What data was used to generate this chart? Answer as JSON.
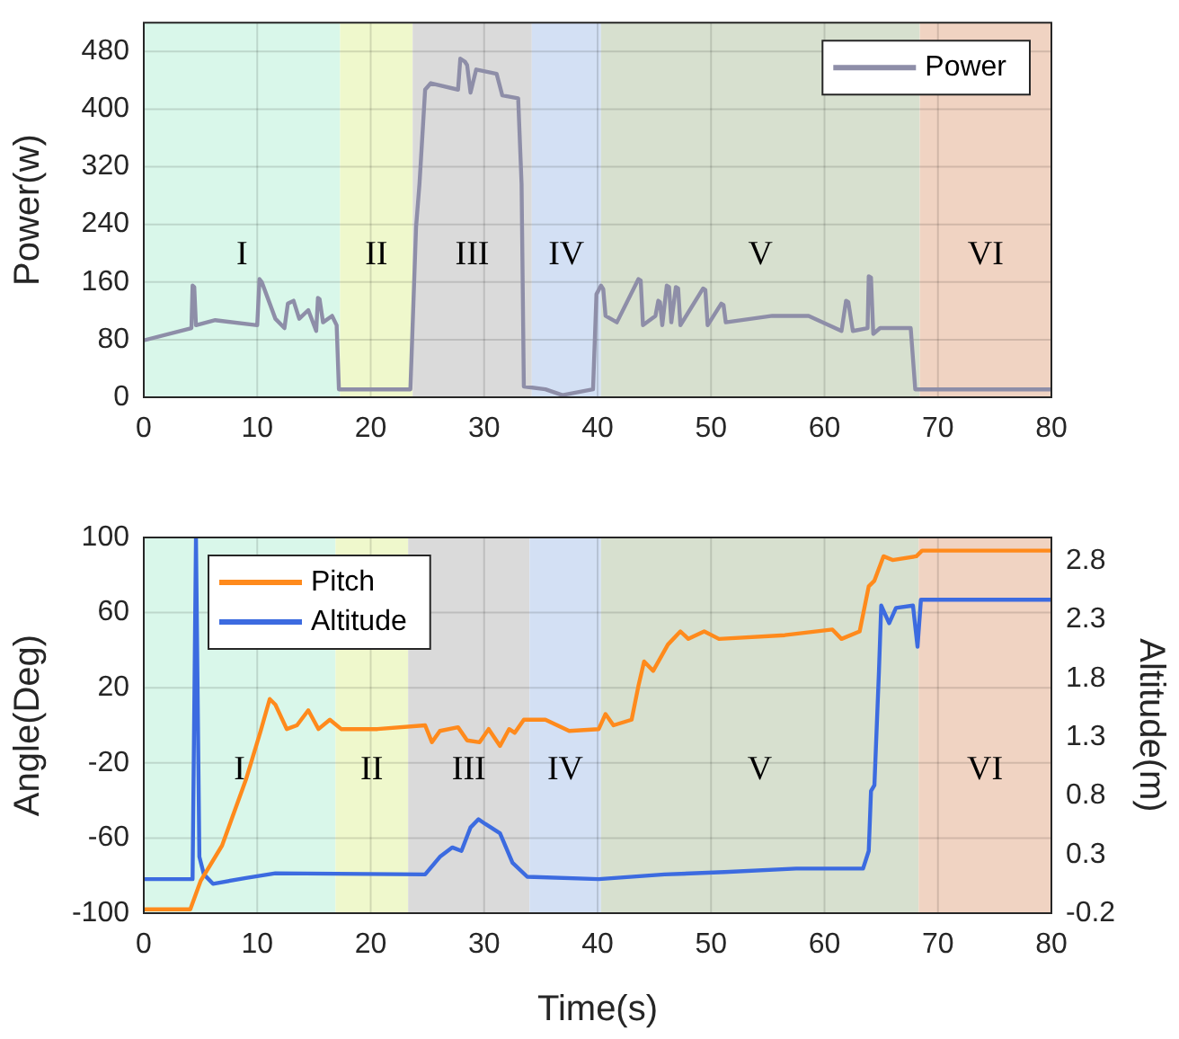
{
  "chart_data": [
    {
      "type": "line",
      "ylabel": "Power(w)",
      "xlim": [
        0,
        80
      ],
      "xticks": [
        0,
        10,
        20,
        30,
        40,
        50,
        60,
        70,
        80
      ],
      "ylim": [
        0,
        520
      ],
      "yticks": [
        0,
        80,
        160,
        240,
        320,
        400,
        480
      ],
      "grid": true,
      "legend": "top right",
      "marker": "none",
      "line_style": "solid",
      "bands": [
        {
          "axis": "x",
          "from": 0,
          "to": 17.3,
          "label": "I",
          "color": "#d9f7ea"
        },
        {
          "axis": "x",
          "from": 17.3,
          "to": 23.7,
          "label": "II",
          "color": "#eff8cc"
        },
        {
          "axis": "x",
          "from": 23.7,
          "to": 34.2,
          "label": "III",
          "color": "#dadada"
        },
        {
          "axis": "x",
          "from": 34.2,
          "to": 40.3,
          "label": "IV",
          "color": "#d3e0f4"
        },
        {
          "axis": "x",
          "from": 40.3,
          "to": 68.4,
          "label": "V",
          "color": "#d7e0cf"
        },
        {
          "axis": "x",
          "from": 68.4,
          "to": 80,
          "label": "VI",
          "color": "#f0d3c2"
        }
      ],
      "series": [
        {
          "name": "Power",
          "color": "#8e8ea8",
          "x": [
            0,
            4.2,
            4.3,
            4.45,
            4.6,
            6.3,
            10,
            10.2,
            10.4,
            10.8,
            11.6,
            12.4,
            12.7,
            13.2,
            13.7,
            14.5,
            15.2,
            15.35,
            15.5,
            15.8,
            16.6,
            17,
            17.2,
            23.5,
            24,
            24.3,
            24.8,
            25.3,
            27.7,
            27.9,
            28.3,
            28.5,
            28.8,
            29.3,
            31.1,
            31.6,
            33,
            33.3,
            33.5,
            35.4,
            36.9,
            39.6,
            39.9,
            40.3,
            40.5,
            40.7,
            41.7,
            43.6,
            43.8,
            44,
            45.1,
            45.35,
            45.5,
            45.7,
            46.1,
            46.3,
            46.5,
            46.9,
            47.1,
            47.3,
            49.3,
            49.5,
            49.7,
            50.9,
            51.1,
            51.3,
            55.4,
            58.6,
            61.5,
            61.9,
            62.1,
            62.5,
            63.8,
            63.9,
            64.1,
            64.3,
            64.9,
            67.6,
            68,
            80
          ],
          "values": [
            79,
            96,
            155,
            153,
            100,
            107,
            100,
            164,
            160,
            143,
            109,
            96,
            130,
            134,
            109,
            121,
            92,
            138,
            136,
            104,
            113,
            100,
            11,
            11,
            236,
            296,
            427,
            436,
            427,
            470,
            466,
            461,
            423,
            455,
            449,
            419,
            415,
            296,
            15,
            11,
            3,
            11,
            143,
            155,
            150,
            113,
            104,
            164,
            162,
            100,
            113,
            134,
            132,
            100,
            155,
            153,
            104,
            153,
            151,
            100,
            151,
            149,
            100,
            130,
            128,
            104,
            113,
            113,
            92,
            134,
            132,
            92,
            96,
            168,
            166,
            88,
            96,
            96,
            11,
            11
          ]
        }
      ]
    },
    {
      "type": "line",
      "xlabel": "Time(s)",
      "ylabel": "Angle(Deg)",
      "y2label": "Altitude(m)",
      "xlim": [
        0,
        80
      ],
      "xticks": [
        0,
        10,
        20,
        30,
        40,
        50,
        60,
        70,
        80
      ],
      "ylim": [
        -100,
        100
      ],
      "yticks": [
        -100,
        -60,
        -20,
        20,
        60,
        100
      ],
      "y2lim": [
        -0.2,
        3.0
      ],
      "y2ticks": [
        -0.2,
        0.3,
        0.8,
        1.3,
        1.8,
        2.3,
        2.8
      ],
      "grid": true,
      "legend": "top left",
      "marker": "none",
      "line_style": "solid",
      "bands": [
        {
          "axis": "x",
          "from": 0,
          "to": 16.9,
          "label": "I",
          "color": "#d9f7ea"
        },
        {
          "axis": "x",
          "from": 16.9,
          "to": 23.3,
          "label": "II",
          "color": "#eff8cc"
        },
        {
          "axis": "x",
          "from": 23.3,
          "to": 34,
          "label": "III",
          "color": "#dadada"
        },
        {
          "axis": "x",
          "from": 34,
          "to": 40.3,
          "label": "IV",
          "color": "#d3e0f4"
        },
        {
          "axis": "x",
          "from": 40.3,
          "to": 68.3,
          "label": "V",
          "color": "#d7e0cf"
        },
        {
          "axis": "x",
          "from": 68.3,
          "to": 80,
          "label": "VI",
          "color": "#f0d3c2"
        }
      ],
      "series": [
        {
          "name": "Pitch",
          "color": "#ff8a1c",
          "x": [
            0,
            4.1,
            5,
            6.9,
            9,
            10.3,
            11.1,
            11.6,
            12.6,
            13.5,
            14.5,
            15.4,
            16.4,
            17.4,
            20.6,
            24.8,
            25.4,
            26.1,
            27.7,
            28.5,
            29.6,
            30.4,
            31.4,
            32.2,
            32.7,
            33.5,
            35.4,
            37.5,
            40.1,
            40.7,
            41.4,
            43,
            43.6,
            44.1,
            44.9,
            46.2,
            47.3,
            48,
            49.4,
            50.7,
            56.5,
            60.7,
            61.5,
            63.1,
            63.9,
            64.4,
            65.2,
            66,
            68.1,
            68.6,
            80
          ],
          "values": [
            -98,
            -98,
            -83,
            -64,
            -29,
            -3,
            14,
            11,
            -2,
            0,
            8,
            -2,
            3,
            -2,
            -2,
            0,
            -9,
            -3,
            -1,
            -8,
            -9,
            -2,
            -11,
            -2,
            -4,
            3,
            3,
            -3,
            -2,
            6,
            0,
            3,
            21,
            34,
            29,
            43,
            50,
            46,
            50,
            46,
            48,
            51,
            46,
            50,
            74,
            77,
            90,
            88,
            90,
            93,
            93
          ]
        },
        {
          "name": "Altitude",
          "color": "#3c6be0",
          "axis": "y2",
          "x": [
            0,
            4.3,
            4.6,
            4.9,
            5.3,
            6.1,
            9,
            11.6,
            24.8,
            26.1,
            27.2,
            28,
            28.8,
            29.5,
            30.1,
            31.4,
            32.5,
            33.8,
            40.1,
            45.9,
            51.2,
            57.5,
            63.4,
            63.9,
            64.1,
            64.4,
            64.8,
            65,
            65.7,
            66.3,
            67.8,
            68.2,
            68.5,
            80
          ],
          "values": [
            0.09,
            0.09,
            3.0,
            0.28,
            0.13,
            0.05,
            0.1,
            0.14,
            0.13,
            0.28,
            0.36,
            0.33,
            0.53,
            0.6,
            0.56,
            0.48,
            0.23,
            0.11,
            0.09,
            0.13,
            0.15,
            0.18,
            0.18,
            0.33,
            0.84,
            0.89,
            1.86,
            2.42,
            2.27,
            2.4,
            2.42,
            2.07,
            2.47,
            2.47
          ]
        }
      ]
    }
  ]
}
